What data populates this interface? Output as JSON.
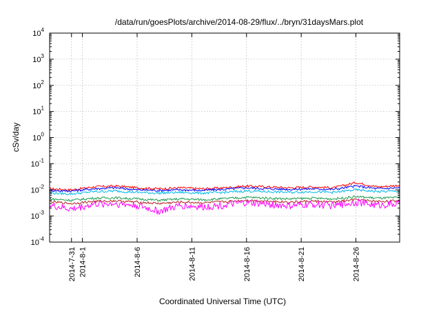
{
  "chart_data": {
    "type": "line",
    "title": "/data/run/goesPlots/archive/2014-08-29/flux/../bryn/31daysMars.plot",
    "xlabel": "Coordinated Universal Time (UTC)",
    "ylabel": "cSv/day",
    "yscale": "log",
    "ylim": [
      0.0001,
      10000
    ],
    "xlim": [
      "2014-07-29",
      "2014-08-30"
    ],
    "grid": true,
    "yticks": [
      {
        "base": "10",
        "exp": "-4",
        "value": 0.0001
      },
      {
        "base": "10",
        "exp": "-3",
        "value": 0.001
      },
      {
        "base": "10",
        "exp": "-2",
        "value": 0.01
      },
      {
        "base": "10",
        "exp": "-1",
        "value": 0.1
      },
      {
        "base": "10",
        "exp": "0",
        "value": 1
      },
      {
        "base": "10",
        "exp": "1",
        "value": 10
      },
      {
        "base": "10",
        "exp": "2",
        "value": 100
      },
      {
        "base": "10",
        "exp": "3",
        "value": 1000
      },
      {
        "base": "10",
        "exp": "4",
        "value": 10000
      }
    ],
    "xticks": [
      {
        "label": "2014-7-31",
        "value": "2014-07-31"
      },
      {
        "label": "2014-8-1",
        "value": "2014-08-01"
      },
      {
        "label": "2014-8-6",
        "value": "2014-08-06"
      },
      {
        "label": "2014-8-11",
        "value": "2014-08-11"
      },
      {
        "label": "2014-8-16",
        "value": "2014-08-16"
      },
      {
        "label": "2014-8-21",
        "value": "2014-08-21"
      },
      {
        "label": "2014-8-26",
        "value": "2014-08-26"
      }
    ],
    "series": [
      {
        "color": "#ff0000",
        "x": [
          "2014-07-29",
          "2014-07-31",
          "2014-08-02",
          "2014-08-04",
          "2014-08-06",
          "2014-08-08",
          "2014-08-10",
          "2014-08-12",
          "2014-08-14",
          "2014-08-16",
          "2014-08-18",
          "2014-08-20",
          "2014-08-22",
          "2014-08-24",
          "2014-08-26",
          "2014-08-28",
          "2014-08-30"
        ],
        "values": [
          0.011,
          0.01,
          0.013,
          0.014,
          0.012,
          0.011,
          0.012,
          0.011,
          0.012,
          0.014,
          0.013,
          0.012,
          0.013,
          0.012,
          0.019,
          0.013,
          0.015
        ]
      },
      {
        "color": "#0000ff",
        "x": [
          "2014-07-29",
          "2014-07-31",
          "2014-08-02",
          "2014-08-04",
          "2014-08-06",
          "2014-08-08",
          "2014-08-10",
          "2014-08-12",
          "2014-08-14",
          "2014-08-16",
          "2014-08-18",
          "2014-08-20",
          "2014-08-22",
          "2014-08-24",
          "2014-08-26",
          "2014-08-28",
          "2014-08-30"
        ],
        "values": [
          0.0095,
          0.009,
          0.011,
          0.012,
          0.01,
          0.0095,
          0.01,
          0.0095,
          0.0105,
          0.012,
          0.011,
          0.0105,
          0.011,
          0.0105,
          0.014,
          0.011,
          0.012
        ]
      },
      {
        "color": "#00b8e8",
        "x": [
          "2014-07-29",
          "2014-07-31",
          "2014-08-02",
          "2014-08-04",
          "2014-08-06",
          "2014-08-08",
          "2014-08-10",
          "2014-08-12",
          "2014-08-14",
          "2014-08-16",
          "2014-08-18",
          "2014-08-20",
          "2014-08-22",
          "2014-08-24",
          "2014-08-26",
          "2014-08-28",
          "2014-08-30"
        ],
        "values": [
          0.0075,
          0.007,
          0.0085,
          0.009,
          0.008,
          0.0075,
          0.008,
          0.0075,
          0.008,
          0.009,
          0.0085,
          0.008,
          0.0085,
          0.008,
          0.01,
          0.0085,
          0.009
        ]
      },
      {
        "color": "#1a9a50",
        "x": [
          "2014-07-29",
          "2014-07-31",
          "2014-08-02",
          "2014-08-04",
          "2014-08-06",
          "2014-08-08",
          "2014-08-10",
          "2014-08-12",
          "2014-08-14",
          "2014-08-16",
          "2014-08-18",
          "2014-08-20",
          "2014-08-22",
          "2014-08-24",
          "2014-08-26",
          "2014-08-28",
          "2014-08-30"
        ],
        "values": [
          0.0045,
          0.004,
          0.0048,
          0.005,
          0.0045,
          0.004,
          0.0045,
          0.0042,
          0.0046,
          0.0052,
          0.0048,
          0.0045,
          0.0048,
          0.0045,
          0.0055,
          0.0048,
          0.005
        ]
      },
      {
        "color": "#b22222",
        "x": [
          "2014-07-29",
          "2014-07-31",
          "2014-08-02",
          "2014-08-04",
          "2014-08-06",
          "2014-08-08",
          "2014-08-10",
          "2014-08-12",
          "2014-08-14",
          "2014-08-16",
          "2014-08-18",
          "2014-08-20",
          "2014-08-22",
          "2014-08-24",
          "2014-08-26",
          "2014-08-28",
          "2014-08-30"
        ],
        "values": [
          0.0035,
          0.003,
          0.0036,
          0.0038,
          0.0034,
          0.003,
          0.0034,
          0.0032,
          0.0035,
          0.004,
          0.0037,
          0.0034,
          0.0037,
          0.0034,
          0.0042,
          0.0036,
          0.0038
        ]
      },
      {
        "color": "#ff00ff",
        "x": [
          "2014-07-29",
          "2014-07-31",
          "2014-08-02",
          "2014-08-04",
          "2014-08-06",
          "2014-08-08",
          "2014-08-10",
          "2014-08-12",
          "2014-08-14",
          "2014-08-16",
          "2014-08-18",
          "2014-08-20",
          "2014-08-22",
          "2014-08-24",
          "2014-08-26",
          "2014-08-28",
          "2014-08-30"
        ],
        "values": [
          0.0025,
          0.0018,
          0.0028,
          0.003,
          0.0025,
          0.0015,
          0.0025,
          0.0022,
          0.0026,
          0.0032,
          0.0028,
          0.0024,
          0.0028,
          0.0025,
          0.0034,
          0.0026,
          0.003
        ]
      }
    ]
  }
}
